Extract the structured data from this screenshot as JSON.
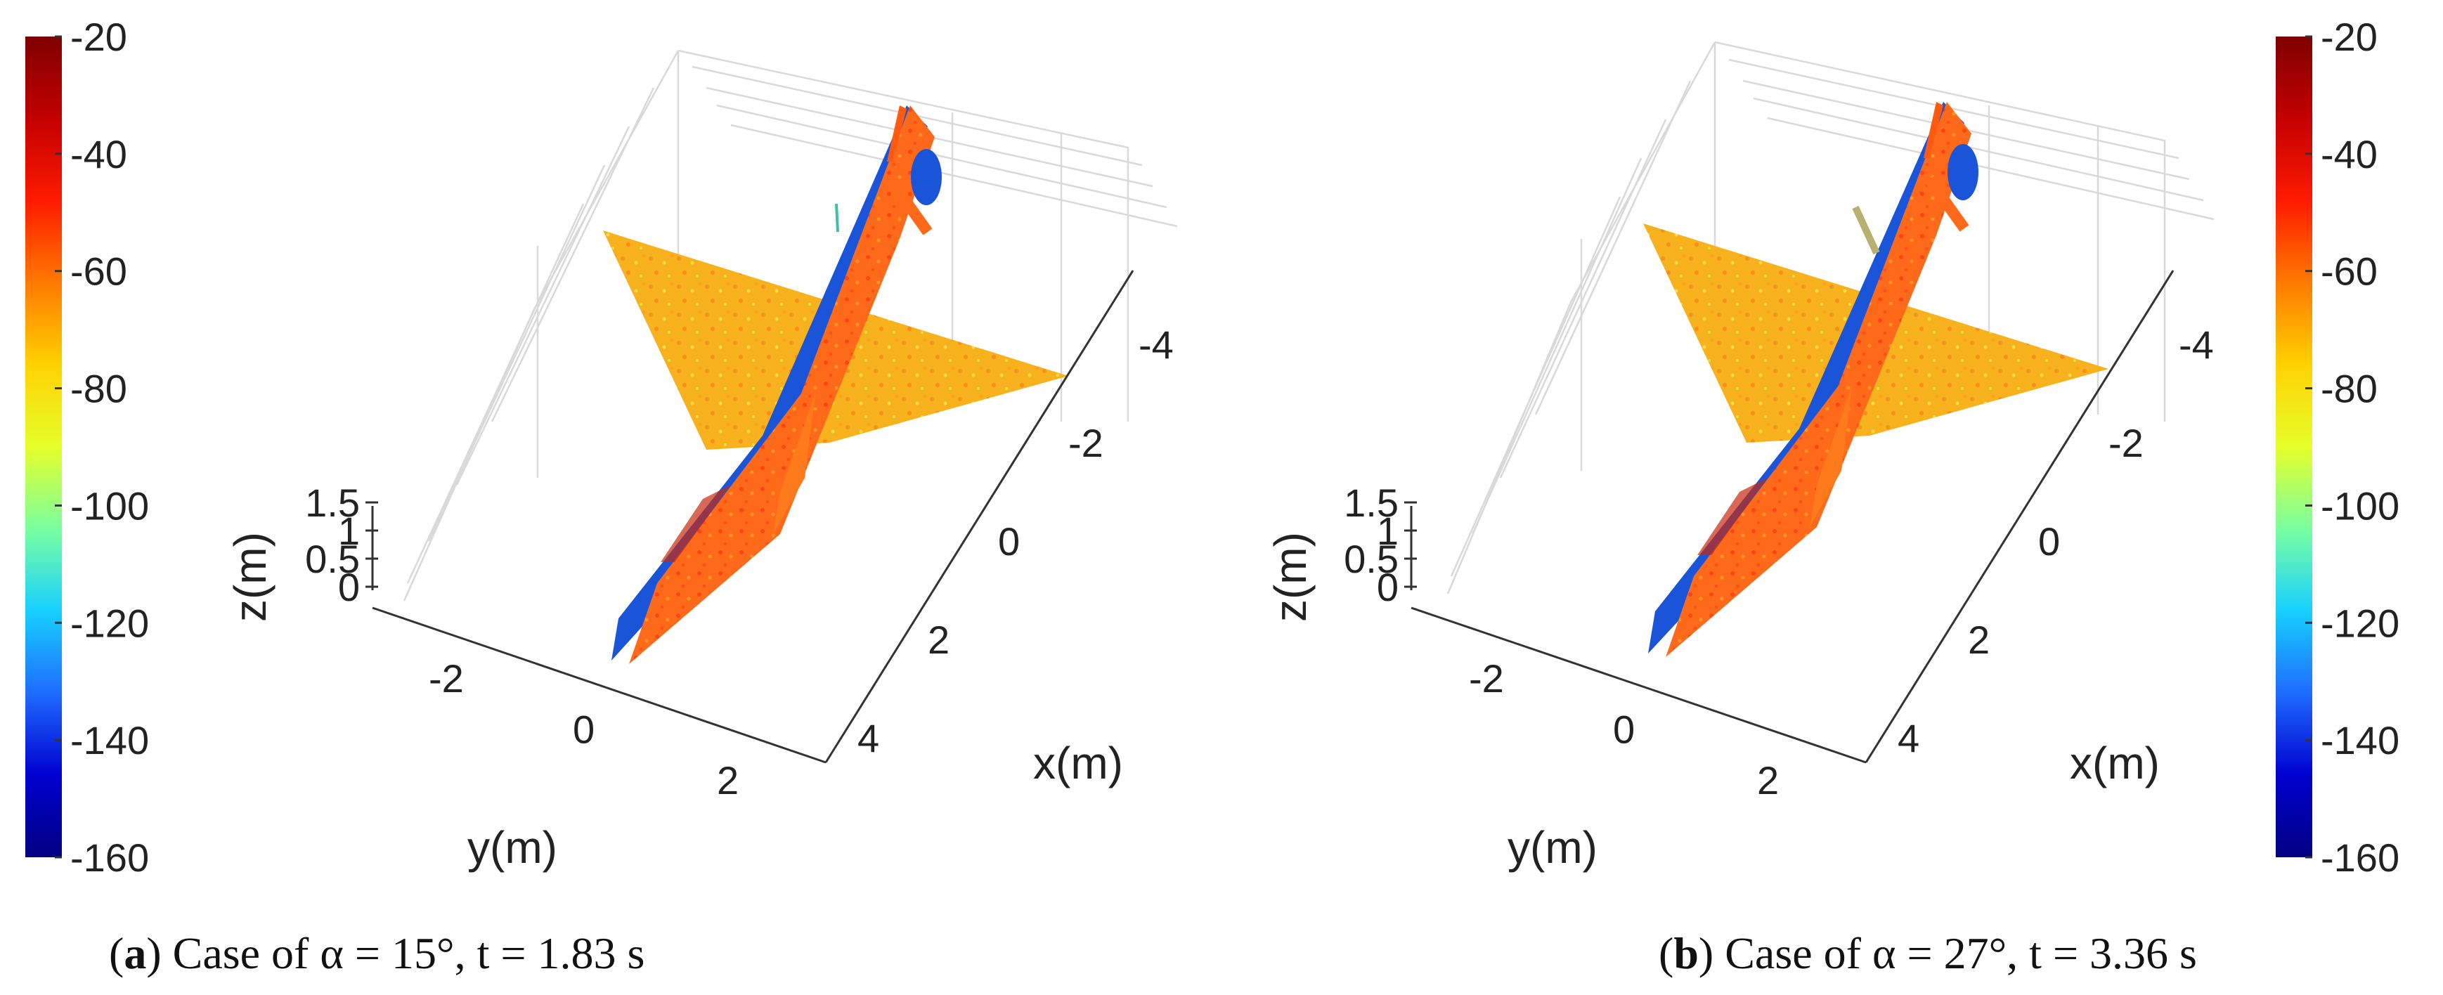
{
  "colors": {
    "colormap": [
      "#000080",
      "#0000d0",
      "#1f6cff",
      "#17d0ff",
      "#7affa0",
      "#e6ff2a",
      "#ffd200",
      "#ff7a00",
      "#ff1a00",
      "#c40000",
      "#7f0000"
    ],
    "fuselage_blue": "#1a55d9",
    "wing_surface": "#f7b21e",
    "fuselage_orange": "#ff6a1a"
  },
  "chart_data": [
    {
      "type": "surface3d",
      "panel": "a",
      "caption": {
        "letter": "a",
        "text": ") Case of α = 15°, t = 1.83 s"
      },
      "xlabel": "x(m)",
      "ylabel": "y(m)",
      "zlabel": "z(m)",
      "x_ticks": [
        "-4",
        "-2",
        "0",
        "2",
        "4"
      ],
      "y_ticks": [
        "-2",
        "0",
        "2"
      ],
      "z_ticks": [
        "1.5",
        "1",
        "0.5",
        "0"
      ],
      "colorbar": {
        "side": "left",
        "range": [
          -160,
          -20
        ],
        "ticks": [
          "-20",
          "-40",
          "-60",
          "-80",
          "-100",
          "-120",
          "-140",
          "-160"
        ]
      }
    },
    {
      "type": "surface3d",
      "panel": "b",
      "caption": {
        "letter": "b",
        "text": ") Case of α = 27°, t = 3.36 s"
      },
      "xlabel": "x(m)",
      "ylabel": "y(m)",
      "zlabel": "z(m)",
      "x_ticks": [
        "-4",
        "-2",
        "0",
        "2",
        "4"
      ],
      "y_ticks": [
        "-2",
        "0",
        "2"
      ],
      "z_ticks": [
        "1.5",
        "1",
        "0.5",
        "0"
      ],
      "colorbar": {
        "side": "right",
        "range": [
          -160,
          -20
        ],
        "ticks": [
          "-20",
          "-40",
          "-60",
          "-80",
          "-100",
          "-120",
          "-140",
          "-160"
        ]
      }
    }
  ]
}
